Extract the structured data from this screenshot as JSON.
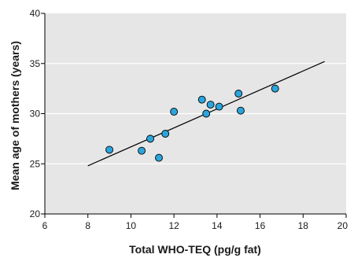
{
  "chart_data": {
    "type": "scatter",
    "title": "",
    "xlabel": "Total WHO-TEQ (pg/g fat)",
    "ylabel": "Mean age of mothers (years)",
    "xlim": [
      6,
      20
    ],
    "ylim": [
      20,
      40
    ],
    "xticks": [
      6,
      8,
      10,
      12,
      14,
      16,
      18,
      20
    ],
    "yticks": [
      20,
      25,
      30,
      35,
      40
    ],
    "grid": "horizontal",
    "background_color": "#e6e6e6",
    "gridline_color": "#ffffff",
    "marker_color": "#2ba5dc",
    "marker_edge_color": "#000000",
    "trendline_color": "#000000",
    "points": [
      {
        "x": 9.0,
        "y": 26.4
      },
      {
        "x": 10.5,
        "y": 26.3
      },
      {
        "x": 10.9,
        "y": 27.5
      },
      {
        "x": 11.3,
        "y": 25.6
      },
      {
        "x": 11.6,
        "y": 28.0
      },
      {
        "x": 12.0,
        "y": 30.2
      },
      {
        "x": 13.3,
        "y": 31.4
      },
      {
        "x": 13.5,
        "y": 30.0
      },
      {
        "x": 13.7,
        "y": 30.9
      },
      {
        "x": 14.1,
        "y": 30.7
      },
      {
        "x": 15.0,
        "y": 32.0
      },
      {
        "x": 15.1,
        "y": 30.3
      },
      {
        "x": 16.7,
        "y": 32.5
      }
    ],
    "trendline": {
      "x": [
        8.0,
        19.0
      ],
      "y": [
        24.8,
        35.2
      ]
    }
  }
}
